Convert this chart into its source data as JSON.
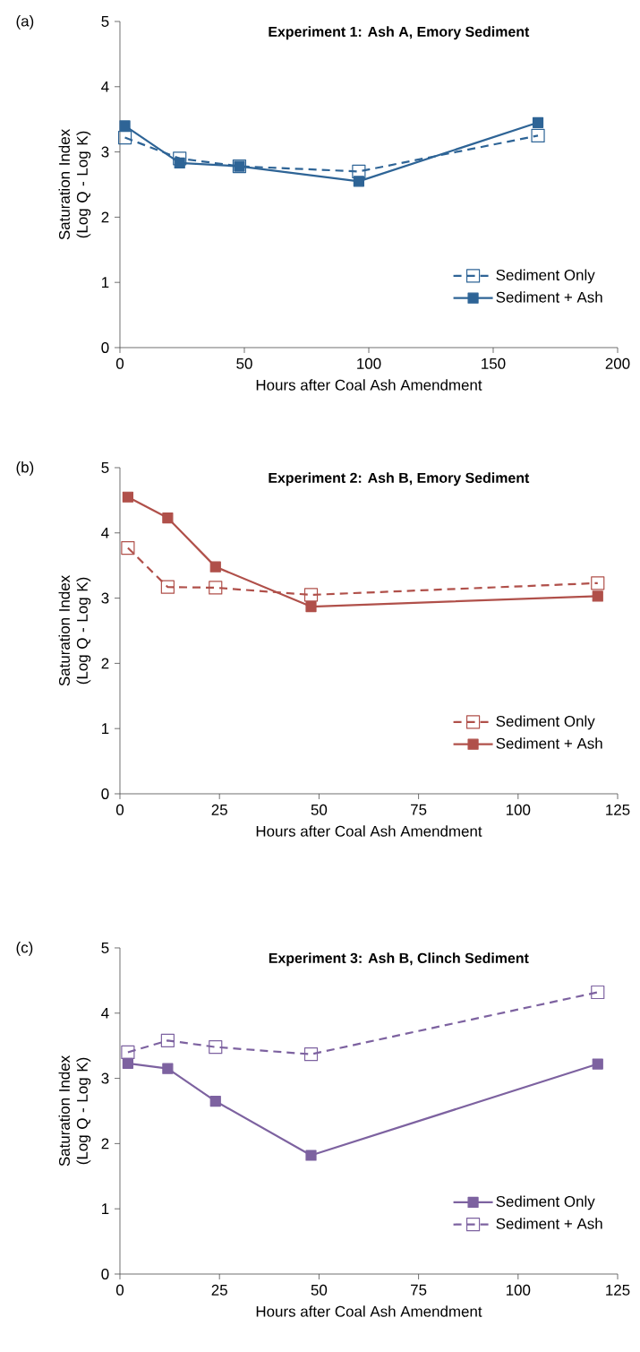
{
  "chart_data": [
    {
      "type": "line",
      "title": "Experiment 1: Ash A, Emory Sediment",
      "xlabel": "Hours after Coal Ash Amendment",
      "ylabel": "Saturation Index (Log Q - Log K)",
      "annotations": [
        "(a)"
      ],
      "xlim": [
        0,
        200
      ],
      "xticks": [
        0,
        50,
        100,
        150,
        200
      ],
      "ylim": [
        0,
        5
      ],
      "yticks": [
        0,
        1,
        2,
        3,
        4,
        5
      ],
      "marker": "square",
      "legend": "bottom right",
      "series": [
        {
          "name": "Sediment Only",
          "color": "#2e6496",
          "line_style": "dashed",
          "x": [
            2,
            24,
            48,
            96,
            168
          ],
          "values": [
            3.22,
            2.9,
            2.78,
            2.7,
            3.25
          ]
        },
        {
          "name": "Sediment + Ash",
          "color": "#2e6496",
          "line_style": "solid",
          "x": [
            2,
            24,
            48,
            96,
            168
          ],
          "values": [
            3.4,
            2.83,
            2.78,
            2.55,
            3.45
          ]
        }
      ]
    },
    {
      "type": "line",
      "title": "Experiment 2: Ash B, Emory Sediment",
      "xlabel": "Hours after Coal Ash Amendment",
      "ylabel": "Saturation Index (Log Q - Log K)",
      "annotations": [
        "(b)"
      ],
      "xlim": [
        0,
        125
      ],
      "xticks": [
        0,
        25,
        50,
        75,
        100,
        125
      ],
      "ylim": [
        0,
        5
      ],
      "yticks": [
        0,
        1,
        2,
        3,
        4,
        5
      ],
      "marker": "square",
      "legend": "bottom right",
      "series": [
        {
          "name": "Sediment Only",
          "color": "#b0504a",
          "line_style": "dashed",
          "x": [
            2,
            12,
            24,
            48,
            120
          ],
          "values": [
            3.77,
            3.17,
            3.16,
            3.05,
            3.23
          ]
        },
        {
          "name": "Sediment + Ash",
          "color": "#b0504a",
          "line_style": "solid",
          "x": [
            2,
            12,
            24,
            48,
            120
          ],
          "values": [
            4.55,
            4.23,
            3.48,
            2.87,
            3.03
          ]
        }
      ]
    },
    {
      "type": "line",
      "title": "Experiment 3: Ash B, Clinch Sediment",
      "xlabel": "Hours after Coal Ash Amendment",
      "ylabel": "Saturation Index (Log Q - Log K)",
      "annotations": [
        "(c)"
      ],
      "xlim": [
        0,
        125
      ],
      "xticks": [
        0,
        25,
        50,
        75,
        100,
        125
      ],
      "ylim": [
        0,
        5
      ],
      "yticks": [
        0,
        1,
        2,
        3,
        4,
        5
      ],
      "marker": "square",
      "legend": "bottom right",
      "series": [
        {
          "name": "Sediment Only",
          "color": "#7d62a0",
          "line_style": "solid",
          "x": [
            2,
            12,
            24,
            48,
            120
          ],
          "values": [
            3.23,
            3.15,
            2.65,
            1.82,
            3.22
          ]
        },
        {
          "name": "Sediment + Ash",
          "color": "#7d62a0",
          "line_style": "dashed",
          "x": [
            2,
            12,
            24,
            48,
            120
          ],
          "values": [
            3.4,
            3.58,
            3.48,
            3.37,
            4.32
          ]
        }
      ]
    }
  ]
}
